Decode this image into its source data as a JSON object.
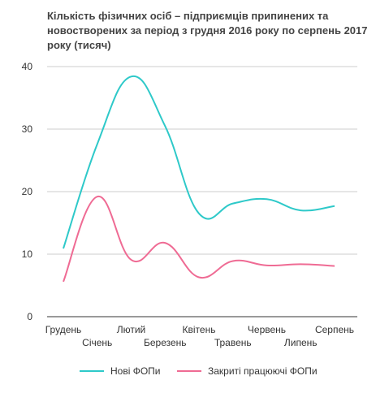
{
  "chart_data": {
    "type": "line",
    "title": "Кількість фізичних осіб – підприємців припинених та новостворених за період з грудня 2016 року по серпень 2017 року (тисяч)",
    "categories": [
      "Грудень",
      "Січень",
      "Лютий",
      "Березень",
      "Квітень",
      "Травень",
      "Червень",
      "Липень",
      "Серпень"
    ],
    "series": [
      {
        "name": "Нові ФОПи",
        "color": "#2ec9c9",
        "values": [
          10.9,
          27.6,
          38.4,
          30.5,
          16.5,
          18.1,
          18.8,
          17.0,
          17.7
        ]
      },
      {
        "name": "Закриті працюючі ФОПи",
        "color": "#ef6b94",
        "values": [
          5.6,
          19.2,
          9.1,
          11.8,
          6.3,
          8.9,
          8.2,
          8.4,
          8.1
        ]
      }
    ],
    "yticks": [
      "0",
      "10",
      "20",
      "30",
      "40"
    ],
    "ylim": [
      0,
      40
    ],
    "grid": true,
    "legend_position": "bottom"
  }
}
